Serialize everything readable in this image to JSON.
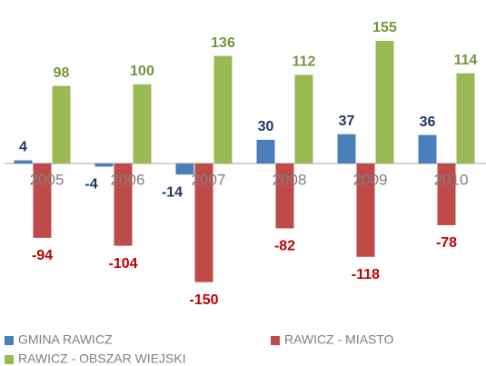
{
  "chart_data": {
    "type": "bar",
    "categories": [
      "2005",
      "2006",
      "2007",
      "2008",
      "2009",
      "2010"
    ],
    "series": [
      {
        "name": "GMINA RAWICZ",
        "color": "#4a7ebb",
        "label_color": "#1f3864",
        "values": [
          4,
          -4,
          -14,
          30,
          37,
          36
        ]
      },
      {
        "name": "RAWICZ - MIASTO",
        "color": "#be4b48",
        "label_color": "#c00000",
        "values": [
          -94,
          -104,
          -150,
          -82,
          -118,
          -78
        ]
      },
      {
        "name": "RAWICZ - OBSZAR WIEJSKI",
        "color": "#98b954",
        "label_color": "#77933c",
        "values": [
          98,
          100,
          136,
          112,
          155,
          114
        ]
      }
    ],
    "legend": "bottom"
  }
}
